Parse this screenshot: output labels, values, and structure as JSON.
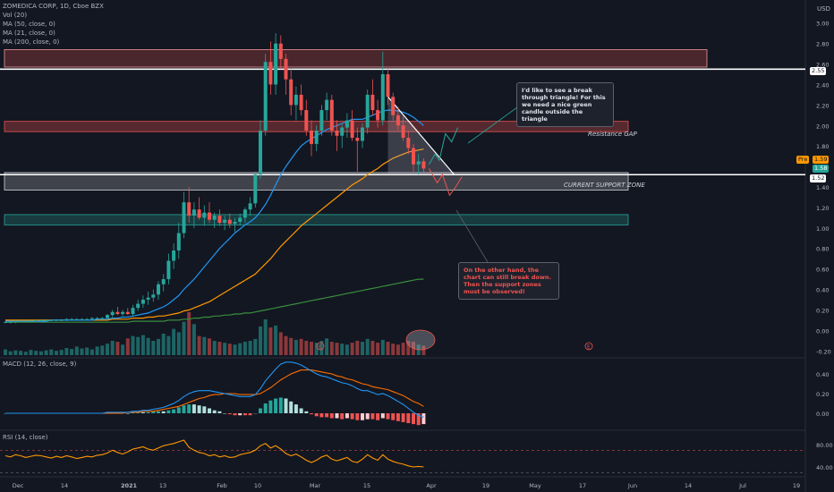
{
  "header": {
    "symbol_line": "ZOMEDICA CORP, 1D, Cboe BZX",
    "indicators": [
      "Vol (20)",
      "MA (50, close, 0)",
      "MA (21, close, 0)",
      "MA (200, close, 0)"
    ],
    "currency": "USD"
  },
  "macd_title": "MACD (12, 26, close, 9)",
  "rsi_title": "RSI (14, close)",
  "annotations": {
    "callout_top": "I'd like to see a break through triangle! For this we need a nice green candle outside the triangle",
    "callout_bottom": "On the other hand, the chart can still break down. Then the support zones must be observed!",
    "zone_resistance": "Resistance GAP",
    "zone_support": "CURRENT SUPPORT ZONE",
    "earnings_marker": "E"
  },
  "price_tags": {
    "level_top": "2.55",
    "level_support": "1.52",
    "pre_label": "Pre",
    "pre_value": "1.59",
    "last_value": "1.58"
  },
  "colors": {
    "background": "#131722",
    "up": "#26a69a",
    "down": "#ef5350",
    "ma21": "#2196f3",
    "ma50": "#ff9800",
    "ma200": "#388e3c",
    "macd": "#2196f3",
    "signal": "#ff6d00",
    "rsi": "#ff9800"
  },
  "chart_data": {
    "type": "candlestick",
    "title": "ZOMEDICA CORP, 1D, Cboe BZX",
    "x_ticks": [
      "Dec",
      "14",
      "2021",
      "13",
      "Feb",
      "10",
      "Mar",
      "15",
      "Apr",
      "19",
      "May",
      "17",
      "Jun",
      "14",
      "Jul",
      "19"
    ],
    "price_axis_ticks": [
      "3.00",
      "2.80",
      "2.60",
      "2.40",
      "2.20",
      "2.00",
      "1.80",
      "1.60",
      "1.40",
      "1.20",
      "1.00",
      "0.80",
      "0.60",
      "0.40",
      "0.20",
      "0.00",
      "-0.20"
    ],
    "macd_axis_ticks": [
      "0.40",
      "0.20",
      "0.00"
    ],
    "rsi_axis_ticks": [
      "80.00",
      "40.00"
    ],
    "ylim": [
      -0.25,
      3.05
    ],
    "horizontal_levels": [
      2.55,
      1.52
    ],
    "zones": [
      {
        "name": "upper-gap",
        "from": 2.57,
        "to": 2.74
      },
      {
        "name": "resistance-gap",
        "from": 1.94,
        "to": 2.04
      },
      {
        "name": "support",
        "from": 1.37,
        "to": 1.54
      },
      {
        "name": "lower",
        "from": 1.03,
        "to": 1.13
      }
    ],
    "candles": [
      [
        0.08,
        0.09,
        0.07,
        0.08
      ],
      [
        0.08,
        0.09,
        0.07,
        0.08
      ],
      [
        0.08,
        0.1,
        0.07,
        0.09
      ],
      [
        0.09,
        0.1,
        0.08,
        0.09
      ],
      [
        0.09,
        0.1,
        0.08,
        0.09
      ],
      [
        0.09,
        0.1,
        0.08,
        0.09
      ],
      [
        0.09,
        0.1,
        0.09,
        0.1
      ],
      [
        0.1,
        0.11,
        0.09,
        0.1
      ],
      [
        0.1,
        0.11,
        0.09,
        0.1
      ],
      [
        0.1,
        0.11,
        0.09,
        0.1
      ],
      [
        0.1,
        0.11,
        0.09,
        0.1
      ],
      [
        0.1,
        0.11,
        0.09,
        0.1
      ],
      [
        0.1,
        0.12,
        0.09,
        0.11
      ],
      [
        0.11,
        0.12,
        0.1,
        0.11
      ],
      [
        0.11,
        0.12,
        0.1,
        0.11
      ],
      [
        0.11,
        0.12,
        0.1,
        0.11
      ],
      [
        0.11,
        0.12,
        0.1,
        0.11
      ],
      [
        0.11,
        0.13,
        0.1,
        0.12
      ],
      [
        0.12,
        0.13,
        0.11,
        0.12
      ],
      [
        0.12,
        0.13,
        0.11,
        0.12
      ],
      [
        0.12,
        0.16,
        0.11,
        0.15
      ],
      [
        0.15,
        0.2,
        0.13,
        0.18
      ],
      [
        0.18,
        0.23,
        0.15,
        0.16
      ],
      [
        0.16,
        0.2,
        0.14,
        0.18
      ],
      [
        0.18,
        0.22,
        0.15,
        0.16
      ],
      [
        0.16,
        0.25,
        0.14,
        0.22
      ],
      [
        0.22,
        0.3,
        0.19,
        0.26
      ],
      [
        0.26,
        0.34,
        0.22,
        0.3
      ],
      [
        0.3,
        0.38,
        0.25,
        0.32
      ],
      [
        0.32,
        0.4,
        0.28,
        0.35
      ],
      [
        0.35,
        0.48,
        0.3,
        0.45
      ],
      [
        0.45,
        0.55,
        0.38,
        0.5
      ],
      [
        0.5,
        0.75,
        0.45,
        0.68
      ],
      [
        0.68,
        0.85,
        0.6,
        0.78
      ],
      [
        0.78,
        1.05,
        0.7,
        0.95
      ],
      [
        0.95,
        1.35,
        0.9,
        1.25
      ],
      [
        1.25,
        1.4,
        1.05,
        1.12
      ],
      [
        1.12,
        1.25,
        1.0,
        1.18
      ],
      [
        1.18,
        1.3,
        1.08,
        1.1
      ],
      [
        1.1,
        1.22,
        1.02,
        1.15
      ],
      [
        1.15,
        1.25,
        1.05,
        1.08
      ],
      [
        1.08,
        1.15,
        1.0,
        1.12
      ],
      [
        1.12,
        1.18,
        1.02,
        1.05
      ],
      [
        1.05,
        1.12,
        0.98,
        1.08
      ],
      [
        1.08,
        1.14,
        1.0,
        1.04
      ],
      [
        1.04,
        1.1,
        0.96,
        1.06
      ],
      [
        1.06,
        1.14,
        1.02,
        1.1
      ],
      [
        1.1,
        1.2,
        1.05,
        1.18
      ],
      [
        1.18,
        1.3,
        1.12,
        1.24
      ],
      [
        1.24,
        1.55,
        1.2,
        1.52
      ],
      [
        1.52,
        2.05,
        1.48,
        1.95
      ],
      [
        1.95,
        2.7,
        1.9,
        2.62
      ],
      [
        2.62,
        2.82,
        2.3,
        2.4
      ],
      [
        2.4,
        2.9,
        2.3,
        2.8
      ],
      [
        2.8,
        2.88,
        2.55,
        2.65
      ],
      [
        2.65,
        2.7,
        2.3,
        2.45
      ],
      [
        2.45,
        2.55,
        2.1,
        2.2
      ],
      [
        2.2,
        2.38,
        2.05,
        2.3
      ],
      [
        2.3,
        2.4,
        2.1,
        2.15
      ],
      [
        2.15,
        2.25,
        1.9,
        1.95
      ],
      [
        1.95,
        2.05,
        1.7,
        1.82
      ],
      [
        1.82,
        2.0,
        1.75,
        1.95
      ],
      [
        1.95,
        2.2,
        1.9,
        2.15
      ],
      [
        2.15,
        2.32,
        2.05,
        2.25
      ],
      [
        2.25,
        2.3,
        1.9,
        1.95
      ],
      [
        1.95,
        2.05,
        1.75,
        1.9
      ],
      [
        1.9,
        2.02,
        1.78,
        1.98
      ],
      [
        1.98,
        2.12,
        1.88,
        2.05
      ],
      [
        2.05,
        2.15,
        1.85,
        1.88
      ],
      [
        1.88,
        1.98,
        1.55,
        1.85
      ],
      [
        1.85,
        2.02,
        1.78,
        1.98
      ],
      [
        1.98,
        2.35,
        1.92,
        2.3
      ],
      [
        2.3,
        2.45,
        2.1,
        2.15
      ],
      [
        2.15,
        2.25,
        1.98,
        2.05
      ],
      [
        2.05,
        2.72,
        2.0,
        2.5
      ],
      [
        2.5,
        2.55,
        2.2,
        2.28
      ],
      [
        2.28,
        2.32,
        2.05,
        2.1
      ],
      [
        2.1,
        2.18,
        1.95,
        2.0
      ],
      [
        2.0,
        2.1,
        1.85,
        1.88
      ],
      [
        1.88,
        1.95,
        1.72,
        1.78
      ],
      [
        1.78,
        1.82,
        1.55,
        1.62
      ],
      [
        1.62,
        1.72,
        1.52,
        1.65
      ],
      [
        1.65,
        1.68,
        1.54,
        1.58
      ]
    ],
    "volume": [
      12,
      8,
      10,
      9,
      7,
      11,
      9,
      8,
      10,
      12,
      9,
      11,
      15,
      13,
      18,
      14,
      16,
      12,
      18,
      20,
      24,
      30,
      28,
      22,
      35,
      40,
      38,
      42,
      36,
      30,
      34,
      45,
      40,
      55,
      48,
      70,
      90,
      65,
      40,
      38,
      35,
      30,
      28,
      26,
      24,
      22,
      25,
      28,
      30,
      34,
      60,
      75,
      58,
      62,
      48,
      40,
      36,
      32,
      34,
      30,
      28,
      26,
      30,
      35,
      28,
      26,
      24,
      22,
      26,
      30,
      28,
      34,
      30,
      26,
      32,
      28,
      24,
      22,
      26,
      30,
      28,
      22,
      20
    ],
    "ma21": [
      0.09,
      0.09,
      0.09,
      0.09,
      0.09,
      0.09,
      0.09,
      0.09,
      0.09,
      0.1,
      0.1,
      0.1,
      0.1,
      0.1,
      0.1,
      0.1,
      0.1,
      0.1,
      0.11,
      0.11,
      0.11,
      0.12,
      0.12,
      0.13,
      0.13,
      0.14,
      0.15,
      0.16,
      0.17,
      0.19,
      0.21,
      0.23,
      0.26,
      0.3,
      0.34,
      0.4,
      0.45,
      0.5,
      0.56,
      0.62,
      0.68,
      0.74,
      0.8,
      0.85,
      0.9,
      0.95,
      0.99,
      1.03,
      1.06,
      1.1,
      1.16,
      1.23,
      1.32,
      1.42,
      1.52,
      1.6,
      1.67,
      1.74,
      1.8,
      1.84,
      1.87,
      1.9,
      1.93,
      1.96,
      1.98,
      2.0,
      2.02,
      2.04,
      2.06,
      2.06,
      2.06,
      2.08,
      2.1,
      2.12,
      2.14,
      2.15,
      2.15,
      2.14,
      2.13,
      2.11,
      2.08,
      2.04,
      2.0
    ],
    "ma50": [
      0.1,
      0.1,
      0.1,
      0.1,
      0.1,
      0.1,
      0.1,
      0.1,
      0.1,
      0.1,
      0.1,
      0.1,
      0.1,
      0.1,
      0.1,
      0.1,
      0.1,
      0.1,
      0.1,
      0.1,
      0.1,
      0.11,
      0.11,
      0.11,
      0.11,
      0.12,
      0.12,
      0.12,
      0.13,
      0.13,
      0.14,
      0.14,
      0.15,
      0.16,
      0.17,
      0.19,
      0.2,
      0.22,
      0.24,
      0.26,
      0.28,
      0.31,
      0.34,
      0.37,
      0.4,
      0.43,
      0.46,
      0.49,
      0.52,
      0.55,
      0.6,
      0.65,
      0.7,
      0.76,
      0.82,
      0.87,
      0.92,
      0.97,
      1.02,
      1.06,
      1.1,
      1.14,
      1.18,
      1.22,
      1.26,
      1.3,
      1.34,
      1.38,
      1.42,
      1.45,
      1.48,
      1.52,
      1.55,
      1.58,
      1.62,
      1.65,
      1.68,
      1.7,
      1.72,
      1.74,
      1.75,
      1.76,
      1.77
    ],
    "ma200": [
      0.08,
      0.08,
      0.08,
      0.08,
      0.08,
      0.08,
      0.08,
      0.08,
      0.08,
      0.08,
      0.08,
      0.08,
      0.08,
      0.08,
      0.08,
      0.08,
      0.08,
      0.08,
      0.08,
      0.08,
      0.08,
      0.08,
      0.08,
      0.08,
      0.08,
      0.09,
      0.09,
      0.09,
      0.09,
      0.09,
      0.09,
      0.09,
      0.1,
      0.1,
      0.1,
      0.11,
      0.11,
      0.12,
      0.12,
      0.13,
      0.13,
      0.14,
      0.14,
      0.15,
      0.15,
      0.16,
      0.16,
      0.17,
      0.17,
      0.18,
      0.19,
      0.2,
      0.21,
      0.22,
      0.23,
      0.24,
      0.25,
      0.26,
      0.27,
      0.28,
      0.29,
      0.3,
      0.31,
      0.32,
      0.33,
      0.34,
      0.35,
      0.36,
      0.37,
      0.38,
      0.39,
      0.4,
      0.41,
      0.42,
      0.43,
      0.44,
      0.45,
      0.46,
      0.47,
      0.48,
      0.49,
      0.5,
      0.5
    ],
    "macd": [
      0,
      0,
      0,
      0,
      0,
      0,
      0,
      0,
      0,
      0,
      0,
      0,
      0,
      0,
      0,
      0,
      0,
      0,
      0,
      0,
      0.01,
      0.01,
      0.01,
      0.01,
      0.01,
      0.02,
      0.02,
      0.03,
      0.03,
      0.04,
      0.05,
      0.06,
      0.08,
      0.1,
      0.13,
      0.17,
      0.2,
      0.22,
      0.23,
      0.23,
      0.23,
      0.22,
      0.21,
      0.2,
      0.19,
      0.18,
      0.17,
      0.17,
      0.17,
      0.19,
      0.25,
      0.33,
      0.39,
      0.45,
      0.5,
      0.52,
      0.52,
      0.51,
      0.49,
      0.46,
      0.43,
      0.4,
      0.38,
      0.37,
      0.35,
      0.33,
      0.31,
      0.3,
      0.28,
      0.25,
      0.23,
      0.23,
      0.21,
      0.19,
      0.2,
      0.18,
      0.15,
      0.12,
      0.09,
      0.05,
      0.01,
      -0.02,
      -0.04
    ],
    "signal": [
      0,
      0,
      0,
      0,
      0,
      0,
      0,
      0,
      0,
      0,
      0,
      0,
      0,
      0,
      0,
      0,
      0,
      0,
      0,
      0,
      0,
      0,
      0,
      0,
      0.01,
      0.01,
      0.01,
      0.02,
      0.02,
      0.02,
      0.03,
      0.04,
      0.05,
      0.06,
      0.07,
      0.09,
      0.11,
      0.13,
      0.15,
      0.16,
      0.18,
      0.19,
      0.19,
      0.2,
      0.2,
      0.2,
      0.19,
      0.19,
      0.19,
      0.19,
      0.2,
      0.23,
      0.26,
      0.3,
      0.34,
      0.37,
      0.4,
      0.42,
      0.44,
      0.44,
      0.44,
      0.43,
      0.42,
      0.41,
      0.4,
      0.38,
      0.37,
      0.35,
      0.34,
      0.32,
      0.3,
      0.29,
      0.27,
      0.26,
      0.25,
      0.24,
      0.22,
      0.2,
      0.18,
      0.15,
      0.12,
      0.1,
      0.07
    ],
    "rsi": [
      60,
      58,
      62,
      60,
      57,
      59,
      61,
      60,
      58,
      56,
      59,
      57,
      60,
      58,
      55,
      57,
      59,
      58,
      61,
      62,
      65,
      70,
      66,
      63,
      67,
      72,
      74,
      76,
      72,
      70,
      74,
      78,
      80,
      82,
      85,
      88,
      75,
      70,
      66,
      64,
      60,
      62,
      58,
      60,
      57,
      58,
      62,
      64,
      66,
      70,
      78,
      82,
      74,
      78,
      72,
      64,
      60,
      63,
      58,
      52,
      48,
      52,
      58,
      61,
      54,
      51,
      54,
      57,
      50,
      48,
      54,
      62,
      56,
      52,
      62,
      54,
      50,
      47,
      45,
      42,
      40,
      41,
      40
    ],
    "projections": {
      "bull_path": [
        [
          1.62,
          0
        ],
        [
          1.72,
          6
        ],
        [
          1.66,
          10
        ],
        [
          1.92,
          16
        ],
        [
          1.84,
          22
        ],
        [
          1.98,
          28
        ]
      ],
      "bear_path": [
        [
          1.58,
          0
        ],
        [
          1.44,
          8
        ],
        [
          1.52,
          13
        ],
        [
          1.32,
          20
        ],
        [
          1.4,
          26
        ],
        [
          1.5,
          32
        ]
      ],
      "triangle_top": [
        [
          2.28,
          75
        ],
        [
          1.52,
          88
        ]
      ]
    }
  }
}
